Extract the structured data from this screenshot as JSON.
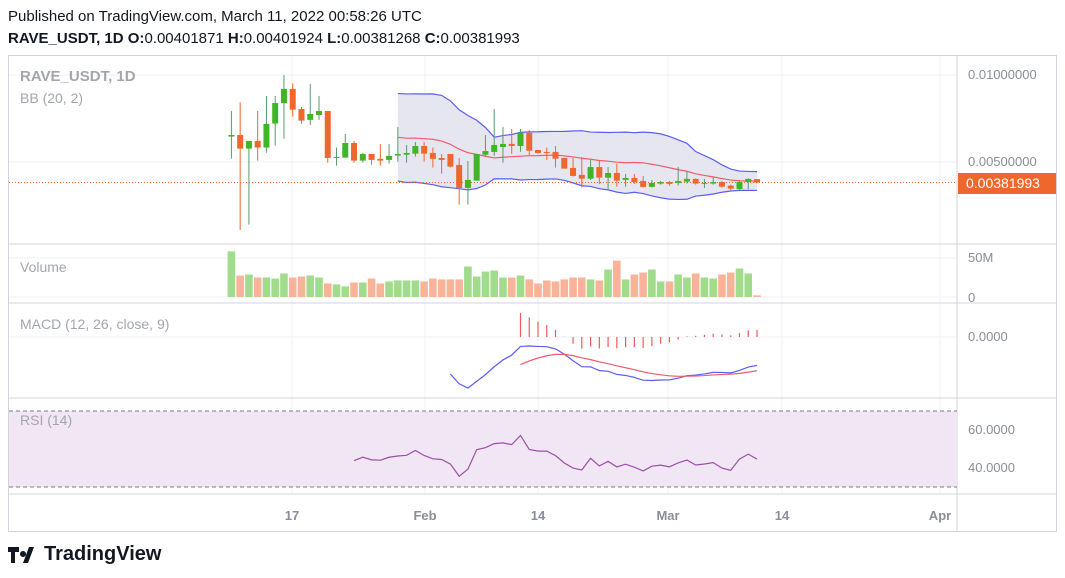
{
  "header": {
    "published": "Published on TradingView.com, March 11, 2022 00:58:26 UTC",
    "symbol": "RAVE_USDT, 1D",
    "o_label": "O:",
    "o": "0.00401871",
    "h_label": "H:",
    "h": "0.00401924",
    "l_label": "L:",
    "l": "0.00381268",
    "c_label": "C:",
    "c": "0.00381993"
  },
  "panes": {
    "main_title": "RAVE_USDT, 1D",
    "bb_label": "BB (20, 2)",
    "volume_label": "Volume",
    "macd_label": "MACD (12, 26, close, 9)",
    "rsi_label": "RSI (14)"
  },
  "axes": {
    "price_ticks": [
      "0.01000000",
      "0.00500000"
    ],
    "last_price": "0.00381993",
    "volume_ticks": [
      "50M",
      "0"
    ],
    "macd_ticks": [
      "0.0000"
    ],
    "rsi_ticks": [
      "60.0000",
      "40.0000"
    ],
    "time_ticks": [
      "17",
      "Feb",
      "14",
      "Mar",
      "14",
      "Apr"
    ]
  },
  "footer": {
    "brand": "TradingView"
  },
  "colors": {
    "up": "#40b624",
    "down": "#f0672d",
    "up_vol": "#a0dc8c",
    "down_vol": "#f9b399",
    "bb_band": "#5b5ef0",
    "bb_mid": "#f05a6e",
    "bb_fill": "#e3e3f0",
    "macd": "#5b5ef0",
    "signal": "#f05a6e",
    "rsi": "#9c4fa8",
    "rsi_band": "#f1e6f3"
  },
  "chart_data": {
    "type": "candlestick",
    "title": "RAVE_USDT, 1D",
    "first_date": "2022-01-10",
    "ohlc": [
      [
        0.00646,
        0.00793,
        0.00519,
        0.00655
      ],
      [
        0.00655,
        0.00843,
        0.00109,
        0.00577
      ],
      [
        0.00577,
        0.00621,
        0.0014,
        0.00621
      ],
      [
        0.00621,
        0.00793,
        0.00508,
        0.00583
      ],
      [
        0.00583,
        0.0088,
        0.00554,
        0.00719
      ],
      [
        0.00721,
        0.0088,
        0.00594,
        0.00839
      ],
      [
        0.00839,
        0.01,
        0.00634,
        0.0092
      ],
      [
        0.0092,
        0.00952,
        0.00761,
        0.00801
      ],
      [
        0.00805,
        0.00816,
        0.00719,
        0.00738
      ],
      [
        0.00742,
        0.00949,
        0.00713,
        0.00776
      ],
      [
        0.0077,
        0.0088,
        0.00742,
        0.00793
      ],
      [
        0.00793,
        0.00793,
        0.00496,
        0.00523
      ],
      [
        0.00525,
        0.00583,
        0.00479,
        0.00529
      ],
      [
        0.00525,
        0.00661,
        0.00525,
        0.00609
      ],
      [
        0.00609,
        0.00621,
        0.00496,
        0.00508
      ],
      [
        0.00508,
        0.00552,
        0.00496,
        0.00546
      ],
      [
        0.00546,
        0.00546,
        0.00485,
        0.00512
      ],
      [
        0.00518,
        0.00604,
        0.00479,
        0.00508
      ],
      [
        0.00512,
        0.00604,
        0.00491,
        0.00535
      ],
      [
        0.00537,
        0.00701,
        0.00502,
        0.00546
      ],
      [
        0.00542,
        0.00598,
        0.00496,
        0.00552
      ],
      [
        0.00548,
        0.00615,
        0.00531,
        0.00592
      ],
      [
        0.00592,
        0.00615,
        0.00502,
        0.00548
      ],
      [
        0.00552,
        0.00583,
        0.00468,
        0.00518
      ],
      [
        0.00523,
        0.00546,
        0.00433,
        0.00512
      ],
      [
        0.00546,
        0.00546,
        0.00468,
        0.00473
      ],
      [
        0.00483,
        0.00523,
        0.00255,
        0.00351
      ],
      [
        0.00351,
        0.00506,
        0.00255,
        0.00397
      ],
      [
        0.00393,
        0.00546,
        0.00393,
        0.00546
      ],
      [
        0.00542,
        0.00655,
        0.00535,
        0.00563
      ],
      [
        0.00558,
        0.00805,
        0.00535,
        0.00598
      ],
      [
        0.00586,
        0.00701,
        0.00496,
        0.00604
      ],
      [
        0.00604,
        0.0069,
        0.00546,
        0.00592
      ],
      [
        0.00592,
        0.0069,
        0.00558,
        0.00667
      ],
      [
        0.00667,
        0.00684,
        0.0054,
        0.00565
      ],
      [
        0.00569,
        0.00569,
        0.00548,
        0.00552
      ],
      [
        0.00558,
        0.00583,
        0.00512,
        0.00552
      ],
      [
        0.00558,
        0.00592,
        0.00468,
        0.00519
      ],
      [
        0.00523,
        0.00523,
        0.00462,
        0.00462
      ],
      [
        0.00466,
        0.00523,
        0.00416,
        0.0042
      ],
      [
        0.00426,
        0.00529,
        0.00353,
        0.00404
      ],
      [
        0.00404,
        0.00512,
        0.00397,
        0.00471
      ],
      [
        0.00471,
        0.00506,
        0.00374,
        0.0041
      ],
      [
        0.0041,
        0.00471,
        0.00341,
        0.00437
      ],
      [
        0.00437,
        0.00489,
        0.00358,
        0.00393
      ],
      [
        0.00397,
        0.00431,
        0.00358,
        0.00408
      ],
      [
        0.00408,
        0.00431,
        0.00374,
        0.00385
      ],
      [
        0.00391,
        0.0042,
        0.00353,
        0.00357
      ],
      [
        0.00357,
        0.00397,
        0.00353,
        0.0038
      ],
      [
        0.00376,
        0.00391,
        0.0037,
        0.00385
      ],
      [
        0.00385,
        0.00391,
        0.00364,
        0.00374
      ],
      [
        0.0038,
        0.00471,
        0.00364,
        0.00391
      ],
      [
        0.00387,
        0.00448,
        0.00376,
        0.00403
      ],
      [
        0.00403,
        0.00406,
        0.0037,
        0.00376
      ],
      [
        0.00376,
        0.00403,
        0.00351,
        0.0038
      ],
      [
        0.00376,
        0.00414,
        0.0037,
        0.00385
      ],
      [
        0.00385,
        0.00391,
        0.00353,
        0.00358
      ],
      [
        0.00364,
        0.0037,
        0.00339,
        0.00347
      ],
      [
        0.00345,
        0.00391,
        0.00341,
        0.00385
      ],
      [
        0.00385,
        0.00406,
        0.00345,
        0.00403
      ],
      [
        0.00401871,
        0.00401924,
        0.00381268,
        0.00381993
      ]
    ],
    "volume_millions": [
      54.3,
      25.6,
      26.8,
      23.2,
      23.2,
      22.0,
      28.0,
      23.2,
      24.4,
      25.6,
      23.2,
      16.1,
      15.0,
      12.6,
      17.3,
      17.3,
      22.0,
      16.1,
      18.5,
      19.7,
      19.7,
      19.7,
      18.5,
      22.0,
      20.9,
      20.9,
      20.9,
      36.2,
      24.4,
      30.3,
      31.5,
      23.2,
      23.2,
      25.6,
      20.9,
      16.1,
      19.7,
      18.5,
      20.9,
      23.2,
      23.2,
      20.9,
      19.7,
      32.7,
      43.3,
      20.9,
      26.8,
      29.1,
      32.7,
      18.5,
      18.5,
      26.8,
      23.2,
      28.0,
      23.2,
      22.0,
      26.8,
      29.1,
      33.9,
      28.0,
      2.0
    ],
    "price_ylim": [
      0.0,
      0.0108
    ],
    "indicators": [
      "BB (20, 2)",
      "Volume",
      "MACD (12, 26, close, 9)",
      "RSI (14)"
    ],
    "rsi_bands": [
      70,
      30
    ]
  }
}
